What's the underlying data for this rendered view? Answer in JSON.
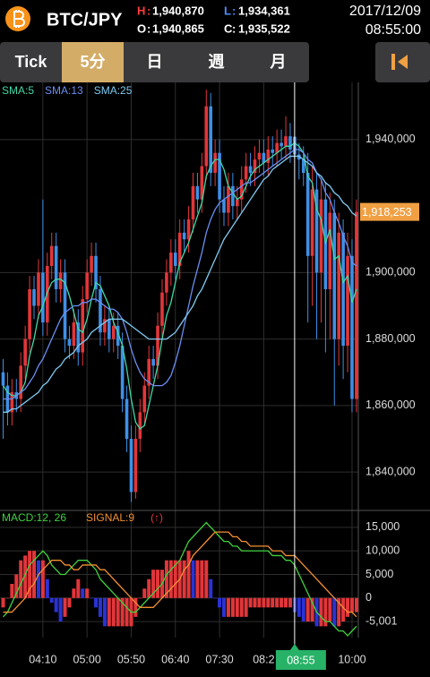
{
  "header": {
    "symbol": "BTC/JPY",
    "high_label": "H",
    "high": "1,940,870",
    "low_label": "L",
    "low": "1,934,361",
    "open_label": "O",
    "open": "1,940,865",
    "close_label": "C",
    "close": "1,935,522",
    "date": "2017/12/09",
    "time": "08:55:00"
  },
  "tabs": [
    "Tick",
    "5分",
    "日",
    "週",
    "月"
  ],
  "selected_tab": 1,
  "chart_data": [
    {
      "type": "candlestick",
      "categories": [
        null,
        null,
        null,
        null,
        null,
        null,
        null,
        null,
        null,
        "04:10",
        null,
        null,
        null,
        null,
        null,
        null,
        null,
        null,
        null,
        "05:00",
        null,
        null,
        null,
        null,
        null,
        null,
        null,
        null,
        null,
        "05:50",
        null,
        null,
        null,
        null,
        null,
        null,
        null,
        null,
        null,
        "06:40",
        null,
        null,
        null,
        null,
        null,
        null,
        null,
        null,
        null,
        "07:30",
        null,
        null,
        null,
        null,
        null,
        null,
        null,
        null,
        null,
        "08:2",
        null,
        null,
        null,
        null,
        null,
        null,
        "08:55",
        null,
        null,
        null,
        null,
        null,
        null,
        null,
        null,
        null,
        null,
        null,
        null,
        "10:00",
        null
      ],
      "crosshair_index": 66,
      "open": [
        1870000,
        1866000,
        1858000,
        1864000,
        1862000,
        1872000,
        1880000,
        1895000,
        1890000,
        1900000,
        1885000,
        1902000,
        1908000,
        1895000,
        1900000,
        1880000,
        1878000,
        1885000,
        1876000,
        1892000,
        1900000,
        1905000,
        1895000,
        1882000,
        1886000,
        1880000,
        1884000,
        1878000,
        1862000,
        1850000,
        1834000,
        1850000,
        1858000,
        1866000,
        1874000,
        1872000,
        1884000,
        1894000,
        1900000,
        1906000,
        1902000,
        1912000,
        1910000,
        1916000,
        1926000,
        1922000,
        1932000,
        1950000,
        1930000,
        1936000,
        1922000,
        1918000,
        1926000,
        1920000,
        1922000,
        1928000,
        1932000,
        1930000,
        1934000,
        1936000,
        1933000,
        1937000,
        1936000,
        1939000,
        1938000,
        1941000,
        1940865,
        1935522,
        1934000,
        1930000,
        1905000,
        1925000,
        1900000,
        1922000,
        1895000,
        1918000,
        1880000,
        1912000,
        1878000,
        1905000,
        1862000
      ],
      "high": [
        1874000,
        1870000,
        1868000,
        1868000,
        1876000,
        1884000,
        1899000,
        1899000,
        1904000,
        1922000,
        1906000,
        1912000,
        1912000,
        1904000,
        1904000,
        1884000,
        1889000,
        1889000,
        1896000,
        1904000,
        1909000,
        1909000,
        1899000,
        1890000,
        1890000,
        1888000,
        1888000,
        1882000,
        1866000,
        1854000,
        1854000,
        1862000,
        1870000,
        1878000,
        1878000,
        1888000,
        1898000,
        1904000,
        1910000,
        1910000,
        1916000,
        1916000,
        1920000,
        1930000,
        1930000,
        1936000,
        1955000,
        1954000,
        1940000,
        1940000,
        1926000,
        1930000,
        1930000,
        1926000,
        1932000,
        1936000,
        1936000,
        1938000,
        1940000,
        1940000,
        1941000,
        1941000,
        1943000,
        1943000,
        1947000,
        1945000,
        1940870,
        1939000,
        1938000,
        1936000,
        1932000,
        1930000,
        1928000,
        1927000,
        1924000,
        1922000,
        1918000,
        1916000,
        1912000,
        1910000,
        1922000
      ],
      "low": [
        1850000,
        1854000,
        1854000,
        1858000,
        1858000,
        1868000,
        1876000,
        1886000,
        1886000,
        1881000,
        1881000,
        1898000,
        1891000,
        1891000,
        1876000,
        1874000,
        1874000,
        1872000,
        1872000,
        1888000,
        1896000,
        1891000,
        1878000,
        1878000,
        1876000,
        1876000,
        1874000,
        1858000,
        1846000,
        1831000,
        1832000,
        1846000,
        1854000,
        1862000,
        1868000,
        1868000,
        1880000,
        1890000,
        1896000,
        1898000,
        1898000,
        1906000,
        1906000,
        1912000,
        1918000,
        1918000,
        1928000,
        1926000,
        1926000,
        1918000,
        1914000,
        1914000,
        1916000,
        1916000,
        1918000,
        1924000,
        1926000,
        1926000,
        1930000,
        1929000,
        1929000,
        1932000,
        1932000,
        1934000,
        1934000,
        1933000,
        1934361,
        1928000,
        1926000,
        1885000,
        1890000,
        1880000,
        1885000,
        1876000,
        1880000,
        1860000,
        1872000,
        1868000,
        1870000,
        1858000,
        1858000
      ],
      "close": [
        1866000,
        1858000,
        1864000,
        1862000,
        1872000,
        1880000,
        1895000,
        1890000,
        1900000,
        1885000,
        1902000,
        1908000,
        1895000,
        1900000,
        1880000,
        1878000,
        1885000,
        1876000,
        1892000,
        1900000,
        1905000,
        1895000,
        1882000,
        1886000,
        1880000,
        1884000,
        1878000,
        1862000,
        1850000,
        1834000,
        1850000,
        1858000,
        1866000,
        1874000,
        1872000,
        1884000,
        1894000,
        1900000,
        1906000,
        1902000,
        1912000,
        1910000,
        1916000,
        1926000,
        1922000,
        1932000,
        1950000,
        1930000,
        1936000,
        1922000,
        1918000,
        1926000,
        1920000,
        1922000,
        1928000,
        1932000,
        1930000,
        1934000,
        1936000,
        1933000,
        1937000,
        1936000,
        1939000,
        1938000,
        1941000,
        1937000,
        1935522,
        1934000,
        1930000,
        1905000,
        1925000,
        1900000,
        1922000,
        1895000,
        1918000,
        1880000,
        1912000,
        1878000,
        1905000,
        1862000,
        1918253
      ],
      "up_color": "#e2363a",
      "down_color": "#3f8fe6",
      "series": [
        {
          "name": "SMA:5",
          "color": "#3fd8a8",
          "values": [
            1866000,
            1864000,
            1863000,
            1863000,
            1864000,
            1867000,
            1875000,
            1880000,
            1887000,
            1890000,
            1894000,
            1897000,
            1898000,
            1898000,
            1897000,
            1893000,
            1888000,
            1883000,
            1882000,
            1886000,
            1892000,
            1897000,
            1896000,
            1893000,
            1890000,
            1885000,
            1882000,
            1878000,
            1871000,
            1862000,
            1855000,
            1853000,
            1854000,
            1860000,
            1866000,
            1872000,
            1880000,
            1887000,
            1891000,
            1897000,
            1903000,
            1906000,
            1909000,
            1913000,
            1917000,
            1921000,
            1929000,
            1932000,
            1934000,
            1934000,
            1931000,
            1926000,
            1924000,
            1922000,
            1923000,
            1926000,
            1929000,
            1931000,
            1932000,
            1933000,
            1934000,
            1935000,
            1936000,
            1937000,
            1938000,
            1938000,
            1939000,
            1938000,
            1936000,
            1929000,
            1927000,
            1919000,
            1916000,
            1909000,
            1913000,
            1904000,
            1905000,
            1897000,
            1899000,
            1891000,
            1895000
          ]
        },
        {
          "name": "SMA:13",
          "color": "#6b8ef2",
          "values": [
            1862000,
            1862000,
            1862000,
            1863000,
            1864000,
            1865000,
            1867000,
            1869000,
            1872000,
            1874000,
            1877000,
            1880000,
            1883000,
            1886000,
            1888000,
            1889000,
            1890000,
            1890000,
            1891000,
            1891000,
            1892000,
            1892000,
            1891000,
            1890000,
            1889000,
            1889000,
            1888000,
            1886000,
            1882000,
            1877000,
            1873000,
            1870000,
            1868000,
            1867000,
            1866000,
            1866000,
            1866000,
            1867000,
            1869000,
            1873000,
            1878000,
            1884000,
            1890000,
            1896000,
            1901000,
            1906000,
            1912000,
            1916000,
            1919000,
            1921000,
            1922000,
            1923000,
            1924000,
            1925000,
            1926000,
            1927000,
            1927000,
            1928000,
            1929000,
            1930000,
            1931000,
            1932000,
            1933000,
            1934000,
            1935000,
            1936000,
            1937000,
            1937000,
            1936000,
            1934000,
            1933000,
            1930000,
            1928000,
            1924000,
            1922000,
            1918000,
            1915000,
            1911000,
            1908000,
            1903000,
            1902000
          ]
        },
        {
          "name": "SMA:25",
          "color": "#7fcaf2",
          "values": [
            1858000,
            1858000,
            1859000,
            1859000,
            1860000,
            1861000,
            1862000,
            1863000,
            1864000,
            1866000,
            1867000,
            1869000,
            1871000,
            1872000,
            1874000,
            1875000,
            1876000,
            1878000,
            1879000,
            1880000,
            1882000,
            1883000,
            1884000,
            1885000,
            1886000,
            1886000,
            1886000,
            1886000,
            1885000,
            1884000,
            1883000,
            1882000,
            1881000,
            1880000,
            1880000,
            1880000,
            1880000,
            1880000,
            1881000,
            1882000,
            1884000,
            1886000,
            1888000,
            1890000,
            1893000,
            1895000,
            1898000,
            1901000,
            1904000,
            1907000,
            1910000,
            1912000,
            1914000,
            1916000,
            1918000,
            1920000,
            1922000,
            1924000,
            1926000,
            1928000,
            1929000,
            1931000,
            1932000,
            1933000,
            1934000,
            1935000,
            1935000,
            1935000,
            1934000,
            1933000,
            1932000,
            1930000,
            1929000,
            1927000,
            1926000,
            1924000,
            1923000,
            1921000,
            1920000,
            1918000,
            1917000
          ]
        }
      ],
      "ylim": [
        1829000,
        1957200
      ],
      "yticks": [
        {
          "value": 1940000,
          "label": "1,940,000"
        },
        {
          "value": 1900000,
          "label": "1,900,000"
        },
        {
          "value": 1880000,
          "label": "1,880,000"
        },
        {
          "value": 1860000,
          "label": "1,860,000"
        },
        {
          "value": 1840000,
          "label": "1,840,000"
        }
      ],
      "grid": true,
      "last_price": {
        "value": 1918253,
        "label": "1,918,253",
        "color": "#f0a043"
      }
    },
    {
      "type": "macd",
      "series": [
        {
          "name": "MACD:12, 26",
          "color": "#3fd23f",
          "values": [
            -4000,
            -3000,
            -1000,
            1000,
            3000,
            5000,
            7000,
            8000,
            9000,
            10000,
            9000,
            7000,
            6000,
            5000,
            5000,
            6000,
            7000,
            8000,
            8000,
            8000,
            7000,
            6000,
            4000,
            3000,
            2000,
            1000,
            0,
            -1000,
            -2000,
            -3000,
            -3000,
            -2000,
            -1000,
            0,
            1000,
            2000,
            3000,
            5000,
            6000,
            7000,
            8000,
            10000,
            12000,
            13000,
            14000,
            15000,
            16000,
            15000,
            14000,
            13000,
            12000,
            12000,
            11000,
            11000,
            10000,
            10000,
            10000,
            10000,
            10000,
            10000,
            10000,
            9000,
            9000,
            9000,
            8000,
            8000,
            7000,
            5000,
            3000,
            1000,
            -1000,
            -3000,
            -4000,
            -5000,
            -5000,
            -6000,
            -7000,
            -7000,
            -8000,
            -7000,
            -6000
          ]
        },
        {
          "name": "SIGNAL:9",
          "color": "#f39032",
          "values": [
            -3000,
            -3000,
            -3000,
            -2000,
            -1000,
            0,
            2000,
            3000,
            5000,
            6000,
            7000,
            8000,
            8000,
            8000,
            7000,
            7000,
            6000,
            6000,
            7000,
            7000,
            7000,
            7000,
            6000,
            6000,
            5000,
            4000,
            3000,
            2000,
            1000,
            0,
            -1000,
            -2000,
            -2000,
            -2000,
            -2000,
            -1000,
            0,
            1000,
            2000,
            3000,
            4000,
            6000,
            7000,
            9000,
            10000,
            11000,
            12000,
            13000,
            14000,
            14000,
            14000,
            14000,
            13000,
            13000,
            12000,
            12000,
            11000,
            11000,
            11000,
            11000,
            11000,
            10000,
            10000,
            10000,
            9000,
            9000,
            9000,
            8000,
            7000,
            6000,
            5000,
            4000,
            3000,
            2000,
            1000,
            0,
            -1000,
            -2000,
            -3000,
            -3000,
            -4000
          ]
        }
      ],
      "histogram": {
        "values": [
          -2000,
          0,
          3000,
          5000,
          8000,
          9000,
          10000,
          10000,
          8000,
          8000,
          4000,
          -1000,
          -3000,
          -5000,
          -4000,
          -2000,
          2000,
          4000,
          2000,
          2000,
          0,
          -2000,
          -4000,
          -6000,
          -6000,
          -6000,
          -6000,
          -6000,
          -6000,
          -6000,
          -4000,
          0,
          2000,
          4000,
          6000,
          6000,
          6000,
          8000,
          8000,
          8000,
          8000,
          8000,
          10000,
          8000,
          8000,
          8000,
          8000,
          4000,
          0,
          -2000,
          -4000,
          -4000,
          -4000,
          -4000,
          -4000,
          -4000,
          -2000,
          -2000,
          -2000,
          -2000,
          -2000,
          -2000,
          -2000,
          -2000,
          -2000,
          -2000,
          -3000,
          -4000,
          -5000,
          -5000,
          -5000,
          -6000,
          -6000,
          -6000,
          -5000,
          -6000,
          -6000,
          -5000,
          -4000,
          -3000,
          -3000
        ],
        "up_color": "#e2363a",
        "down_color": "#2a33d6"
      },
      "annotation": "(↑)",
      "annotation_color": "#e2363a",
      "ylim": [
        -8400,
        18200
      ],
      "yticks": [
        {
          "value": 15000,
          "label": "15,000"
        },
        {
          "value": 10000,
          "label": "10,000"
        },
        {
          "value": 5000,
          "label": "5,000"
        },
        0,
        {
          "value": -5001,
          "label": "-5,001"
        }
      ],
      "grid": true
    }
  ]
}
